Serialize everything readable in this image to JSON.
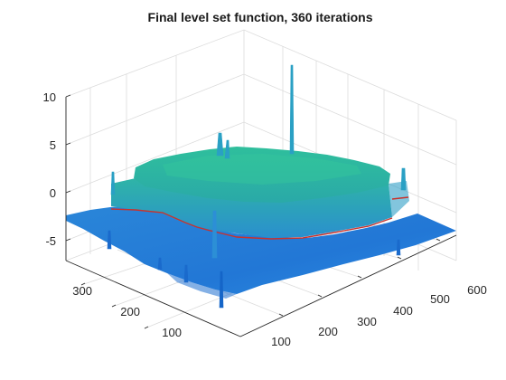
{
  "chart_data": {
    "type": "surface",
    "title": "Final level set function, 360 iterations",
    "xlabel": "",
    "ylabel": "",
    "zlabel": "",
    "x_ticks": [
      100,
      200,
      300,
      400,
      500,
      600
    ],
    "y_ticks": [
      100,
      200,
      300
    ],
    "z_ticks": [
      -5,
      0,
      5,
      10
    ],
    "xlim": [
      0,
      600
    ],
    "ylim": [
      0,
      360
    ],
    "zlim": [
      -7,
      11
    ],
    "grid": true,
    "legend": "none",
    "colormap": "parula",
    "surface_description_values": {
      "plateau_height": 0.5,
      "base_height": -4.5,
      "zero_contour_color": "#c8322d",
      "spike_peak_z": 11
    }
  },
  "colors": {
    "plateau": "#2bb5a0",
    "plateau_edge": "#3aa7b9",
    "base": "#1f7fd6",
    "base_dark": "#1565c8",
    "contour": "#c8322d",
    "grid": "#dcdcdc",
    "axis": "#262626"
  }
}
